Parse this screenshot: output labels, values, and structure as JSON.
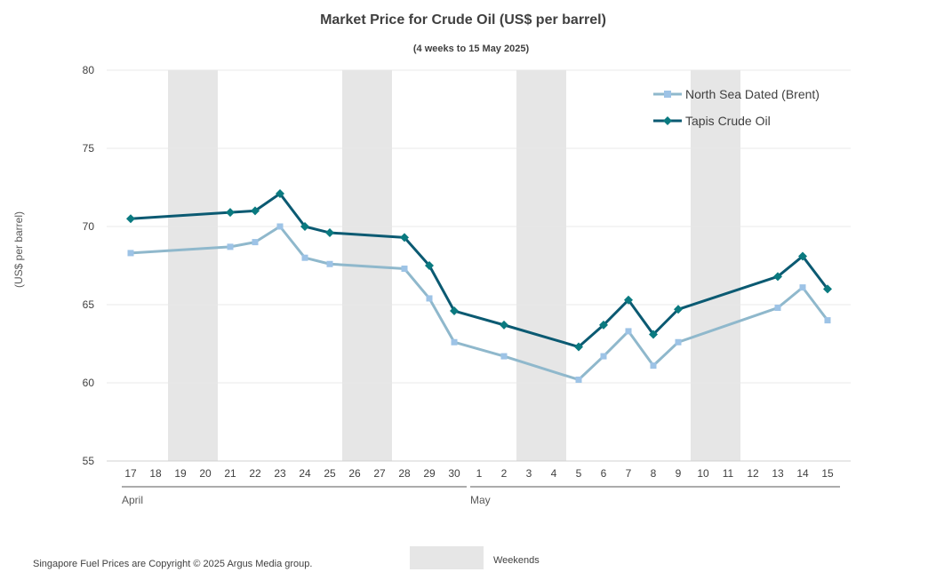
{
  "chart_data": {
    "type": "line",
    "title": "Market Price for Crude Oil (US$ per barrel)",
    "subtitle": "(4 weeks to 15 May 2025)",
    "ylabel": "(US$ per barrel)",
    "ylim": [
      55,
      80
    ],
    "yticks": [
      55,
      60,
      65,
      70,
      75,
      80
    ],
    "grid": true,
    "legend_position": "top-right",
    "categories": [
      "17",
      "18",
      "19",
      "20",
      "21",
      "22",
      "23",
      "24",
      "25",
      "26",
      "27",
      "28",
      "29",
      "30",
      "1",
      "2",
      "3",
      "4",
      "5",
      "6",
      "7",
      "8",
      "9",
      "10",
      "11",
      "12",
      "13",
      "14",
      "15"
    ],
    "month_groups": [
      {
        "label": "April",
        "start": "17",
        "end": "30"
      },
      {
        "label": "May",
        "start": "1",
        "end": "15"
      }
    ],
    "weekends": [
      [
        "19",
        "20"
      ],
      [
        "26",
        "27"
      ],
      [
        "3",
        "4"
      ],
      [
        "10",
        "11"
      ]
    ],
    "series": [
      {
        "name": "North Sea Dated (Brent)",
        "color": "#8fb8cc",
        "marker_color": "#9dc3e6",
        "marker": "square",
        "points": [
          {
            "x": "17",
            "y": 68.3
          },
          {
            "x": "21",
            "y": 68.7
          },
          {
            "x": "22",
            "y": 69.0
          },
          {
            "x": "23",
            "y": 70.0
          },
          {
            "x": "24",
            "y": 68.0
          },
          {
            "x": "25",
            "y": 67.6
          },
          {
            "x": "28",
            "y": 67.3
          },
          {
            "x": "29",
            "y": 65.4
          },
          {
            "x": "30",
            "y": 62.6
          },
          {
            "x": "2",
            "y": 61.7
          },
          {
            "x": "5",
            "y": 60.2
          },
          {
            "x": "6",
            "y": 61.7
          },
          {
            "x": "7",
            "y": 63.3
          },
          {
            "x": "8",
            "y": 61.1
          },
          {
            "x": "9",
            "y": 62.6
          },
          {
            "x": "13",
            "y": 64.8
          },
          {
            "x": "14",
            "y": 66.1
          },
          {
            "x": "15",
            "y": 64.0
          }
        ]
      },
      {
        "name": "Tapis Crude Oil",
        "color": "#0b5a72",
        "marker_color": "#0a7a80",
        "marker": "diamond",
        "points": [
          {
            "x": "17",
            "y": 70.5
          },
          {
            "x": "21",
            "y": 70.9
          },
          {
            "x": "22",
            "y": 71.0
          },
          {
            "x": "23",
            "y": 72.1
          },
          {
            "x": "24",
            "y": 70.0
          },
          {
            "x": "25",
            "y": 69.6
          },
          {
            "x": "28",
            "y": 69.3
          },
          {
            "x": "29",
            "y": 67.5
          },
          {
            "x": "30",
            "y": 64.6
          },
          {
            "x": "2",
            "y": 63.7
          },
          {
            "x": "5",
            "y": 62.3
          },
          {
            "x": "6",
            "y": 63.7
          },
          {
            "x": "7",
            "y": 65.3
          },
          {
            "x": "8",
            "y": 63.1
          },
          {
            "x": "9",
            "y": 64.7
          },
          {
            "x": "13",
            "y": 66.8
          },
          {
            "x": "14",
            "y": 68.1
          },
          {
            "x": "15",
            "y": 66.0
          }
        ]
      }
    ]
  },
  "footer": {
    "copyright": "Singapore Fuel Prices are Copyright © 2025 Argus Media group.",
    "weekends_label": "Weekends",
    "weekends_color": "#e6e6e6"
  }
}
